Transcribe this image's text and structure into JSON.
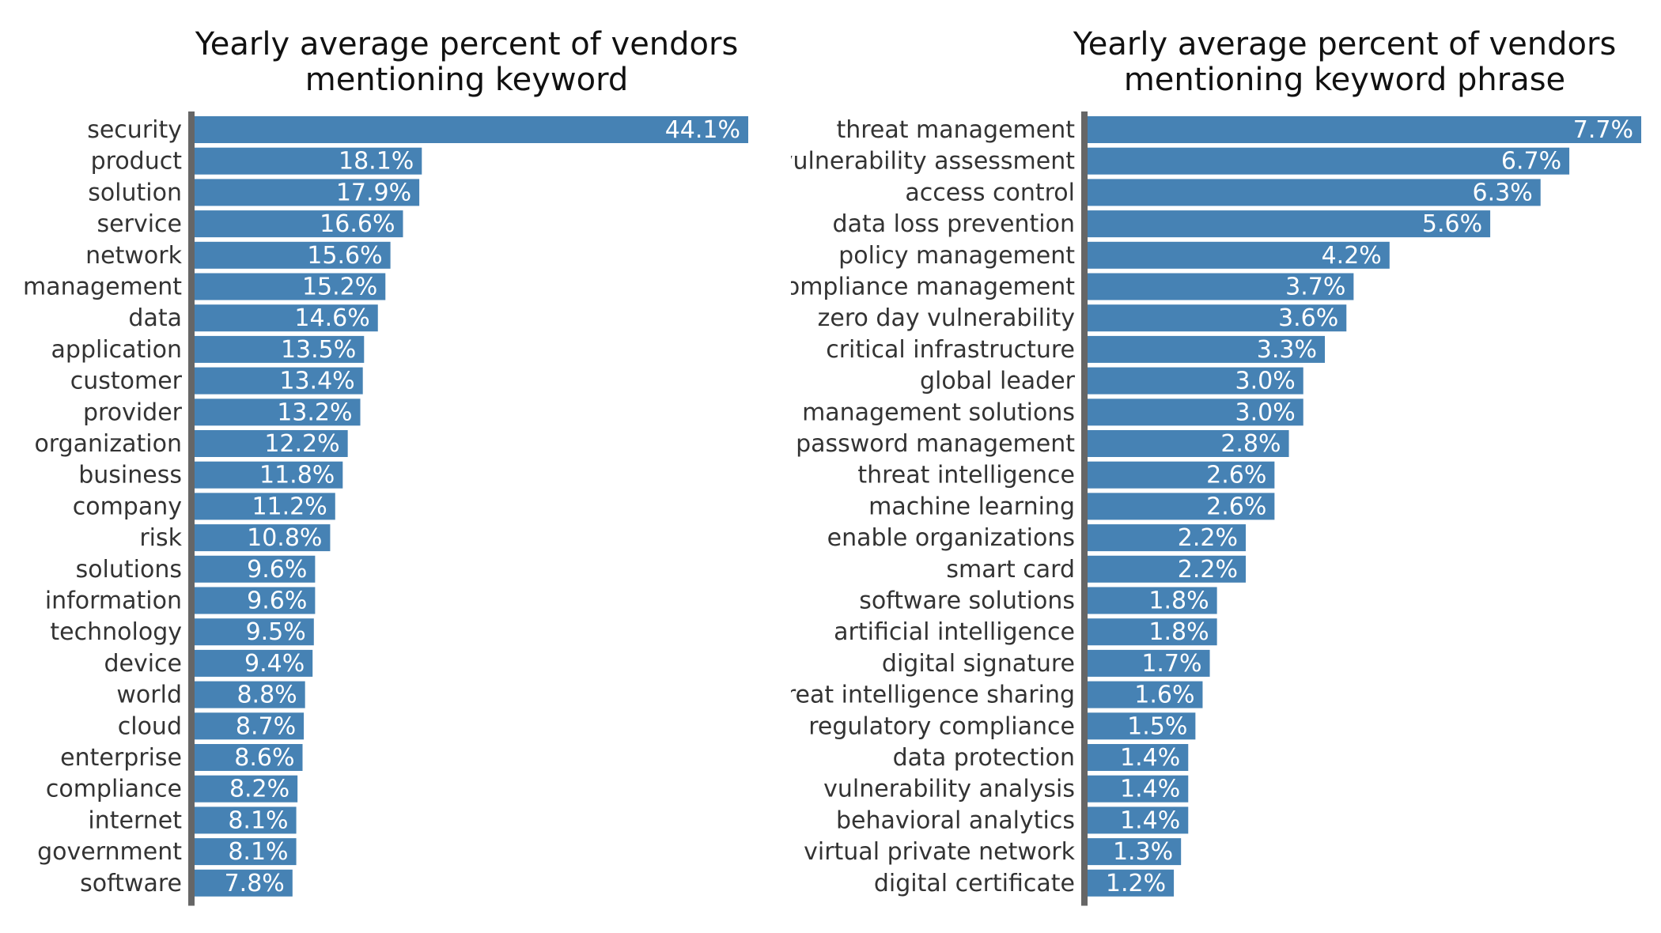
{
  "chart_data": [
    {
      "type": "bar",
      "orientation": "horizontal",
      "title": "Yearly average percent of vendors mentioning keyword",
      "categories": [
        "security",
        "product",
        "solution",
        "service",
        "network",
        "management",
        "data",
        "application",
        "customer",
        "provider",
        "organization",
        "business",
        "company",
        "risk",
        "solutions",
        "information",
        "technology",
        "device",
        "world",
        "cloud",
        "enterprise",
        "compliance",
        "internet",
        "government",
        "software"
      ],
      "values": [
        44.1,
        18.1,
        17.9,
        16.6,
        15.6,
        15.2,
        14.6,
        13.5,
        13.4,
        13.2,
        12.2,
        11.8,
        11.2,
        10.8,
        9.6,
        9.6,
        9.5,
        9.4,
        8.8,
        8.7,
        8.6,
        8.2,
        8.1,
        8.1,
        7.8
      ],
      "value_labels": [
        "44.1%",
        "18.1%",
        "17.9%",
        "16.6%",
        "15.6%",
        "15.2%",
        "14.6%",
        "13.5%",
        "13.4%",
        "13.2%",
        "12.2%",
        "11.8%",
        "11.2%",
        "10.8%",
        "9.6%",
        "9.6%",
        "9.5%",
        "9.4%",
        "8.8%",
        "8.7%",
        "8.6%",
        "8.2%",
        "8.1%",
        "8.1%",
        "7.8%"
      ],
      "xlim": [
        0,
        44.1
      ],
      "bar_color": "#4682b4",
      "axis_color": "#666666",
      "grid": false,
      "legend": "none"
    },
    {
      "type": "bar",
      "orientation": "horizontal",
      "title": "Yearly average percent of vendors mentioning keyword phrase",
      "categories": [
        "threat management",
        "vulnerability assessment",
        "access control",
        "data loss prevention",
        "policy management",
        "compliance management",
        "zero day vulnerability",
        "critical infrastructure",
        "global leader",
        "management solutions",
        "password management",
        "threat intelligence",
        "machine learning",
        "enable organizations",
        "smart card",
        "software solutions",
        "artificial intelligence",
        "digital signature",
        "threat intelligence sharing",
        "regulatory compliance",
        "data protection",
        "vulnerability analysis",
        "behavioral analytics",
        "virtual private network",
        "digital certificate"
      ],
      "values": [
        7.7,
        6.7,
        6.3,
        5.6,
        4.2,
        3.7,
        3.6,
        3.3,
        3.0,
        3.0,
        2.8,
        2.6,
        2.6,
        2.2,
        2.2,
        1.8,
        1.8,
        1.7,
        1.6,
        1.5,
        1.4,
        1.4,
        1.4,
        1.3,
        1.2
      ],
      "value_labels": [
        "7.7%",
        "6.7%",
        "6.3%",
        "5.6%",
        "4.2%",
        "3.7%",
        "3.6%",
        "3.3%",
        "3.0%",
        "3.0%",
        "2.8%",
        "2.6%",
        "2.6%",
        "2.2%",
        "2.2%",
        "1.8%",
        "1.8%",
        "1.7%",
        "1.6%",
        "1.5%",
        "1.4%",
        "1.4%",
        "1.4%",
        "1.3%",
        "1.2%"
      ],
      "xlim": [
        0,
        7.7
      ],
      "bar_color": "#4682b4",
      "axis_color": "#666666",
      "grid": false,
      "legend": "none"
    }
  ]
}
